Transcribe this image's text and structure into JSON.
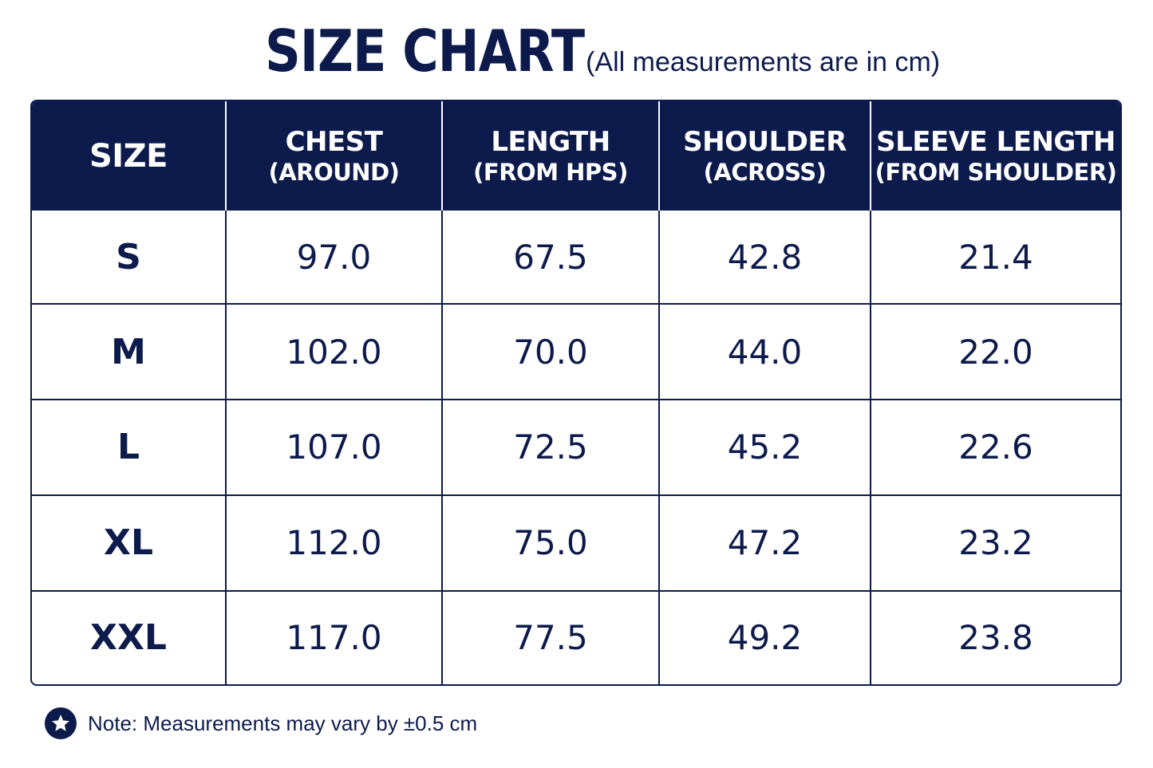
{
  "header": {
    "title": "SIZE CHART",
    "subtitle": "(All measurements are in cm)"
  },
  "table": {
    "columns": [
      {
        "main": "SIZE",
        "sub": ""
      },
      {
        "main": "CHEST",
        "sub": "(AROUND)"
      },
      {
        "main": "LENGTH",
        "sub": "(FROM HPS)"
      },
      {
        "main": "SHOULDER",
        "sub": "(ACROSS)"
      },
      {
        "main": "SLEEVE LENGTH",
        "sub": "(FROM SHOULDER)"
      }
    ],
    "rows": [
      [
        "S",
        "97.0",
        "67.5",
        "42.8",
        "21.4"
      ],
      [
        "M",
        "102.0",
        "70.0",
        "44.0",
        "22.0"
      ],
      [
        "L",
        "107.0",
        "72.5",
        "45.2",
        "22.6"
      ],
      [
        "XL",
        "112.0",
        "75.0",
        "47.2",
        "23.2"
      ],
      [
        "XXL",
        "117.0",
        "77.5",
        "49.2",
        "23.8"
      ]
    ]
  },
  "note": {
    "icon": "star-icon",
    "text": "Note: Measurements may vary by ±0.5 cm"
  },
  "colors": {
    "navy": "#0d1b4c",
    "background": "#ffffff"
  }
}
